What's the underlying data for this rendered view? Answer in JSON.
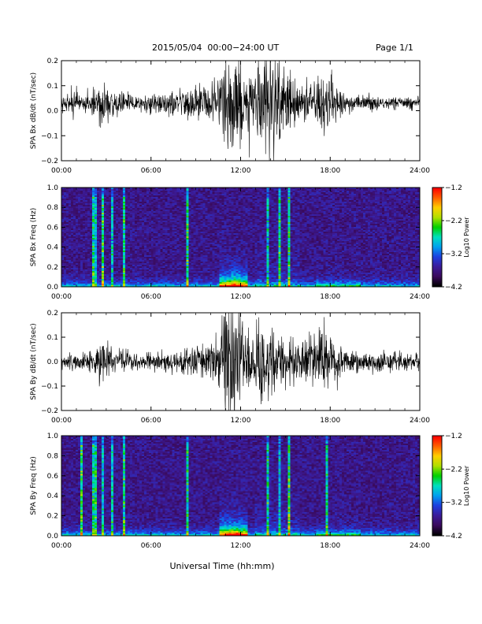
{
  "header": {
    "title": "2015/05/04  00:00−24:00 UT",
    "page": "Page 1/1"
  },
  "footer": {
    "xlabel": "Universal Time (hh:mm)"
  },
  "colors": {
    "trace": "#000000",
    "colormap": [
      "#000000",
      "#3a0a5c",
      "#3b1c9a",
      "#1e3fe0",
      "#00a0f0",
      "#00e0c0",
      "#00d000",
      "#b0e000",
      "#ffd000",
      "#ff6000",
      "#ff0000"
    ]
  },
  "chart_data": [
    {
      "type": "line",
      "ylabel": "SPA Bx dB/dt (nT/sec)",
      "xlim": [
        0,
        24
      ],
      "ylim": [
        -0.2,
        0.2
      ],
      "x_ticks": [
        "00:00",
        "06:00",
        "12:00",
        "18:00",
        "24:00"
      ],
      "y_ticks": [
        "−0.2",
        "−0.1",
        "0.0",
        "0.1",
        "0.2"
      ],
      "series": [
        {
          "values_description_x": [
            0,
            2.0,
            2.7,
            3.0,
            4.0,
            5.5,
            8.5,
            10.5,
            11.0,
            11.7,
            12.0,
            12.3,
            13.0,
            14.0,
            15.0,
            16.0,
            17.0,
            17.8,
            19.0,
            24.0
          ],
          "envelope": [
            0.03,
            0.04,
            0.09,
            0.06,
            0.04,
            0.03,
            0.05,
            0.07,
            0.2,
            0.2,
            0.2,
            0.09,
            0.12,
            0.2,
            0.12,
            0.07,
            0.08,
            0.11,
            0.03,
            0.02
          ],
          "baseline": 0.03
        }
      ]
    },
    {
      "type": "heatmap",
      "ylabel": "SPA Bx Freq (Hz)",
      "colorbar_label": "Log10 Power",
      "colorbar_ticks": [
        "−1.2",
        "−2.2",
        "−3.2",
        "−4.2"
      ],
      "clim": [
        -4.2,
        -1.2
      ],
      "xlim": [
        0,
        24
      ],
      "ylim": [
        0,
        1.0
      ],
      "x_ticks": [
        "00:00",
        "06:00",
        "12:00",
        "18:00",
        "24:00"
      ],
      "y_ticks": [
        "0.0",
        "0.2",
        "0.4",
        "0.6",
        "0.8",
        "1.0"
      ],
      "bright_lines_hours": [
        2.2,
        2.8,
        3.4,
        4.2,
        8.5,
        13.8,
        14.6,
        15.2
      ],
      "peak_activity_hours": [
        10.5,
        12.5
      ]
    },
    {
      "type": "line",
      "ylabel": "SPA By dB/dt (nT/sec)",
      "xlim": [
        0,
        24
      ],
      "ylim": [
        -0.2,
        0.2
      ],
      "x_ticks": [
        "00:00",
        "06:00",
        "12:00",
        "18:00",
        "24:00"
      ],
      "y_ticks": [
        "−0.2",
        "−0.1",
        "0.0",
        "0.1",
        "0.2"
      ],
      "series": [
        {
          "values_description_x": [
            0,
            2.0,
            2.7,
            3.0,
            4.0,
            5.5,
            8.5,
            10.5,
            11.0,
            11.7,
            12.0,
            12.3,
            13.0,
            14.0,
            15.0,
            16.0,
            17.0,
            17.8,
            19.0,
            24.0
          ],
          "envelope": [
            0.03,
            0.04,
            0.09,
            0.06,
            0.04,
            0.03,
            0.05,
            0.08,
            0.2,
            0.2,
            0.2,
            0.1,
            0.12,
            0.14,
            0.09,
            0.07,
            0.1,
            0.12,
            0.04,
            0.03
          ],
          "baseline": 0.0
        }
      ]
    },
    {
      "type": "heatmap",
      "ylabel": "SPA By Freq (Hz)",
      "colorbar_label": "Log10 Power",
      "colorbar_ticks": [
        "−1.2",
        "−2.2",
        "−3.2",
        "−4.2"
      ],
      "clim": [
        -4.2,
        -1.2
      ],
      "xlim": [
        0,
        24
      ],
      "ylim": [
        0,
        1.0
      ],
      "x_ticks": [
        "00:00",
        "06:00",
        "12:00",
        "18:00",
        "24:00"
      ],
      "y_ticks": [
        "0.0",
        "0.2",
        "0.4",
        "0.6",
        "0.8",
        "1.0"
      ],
      "bright_lines_hours": [
        1.3,
        2.2,
        2.8,
        3.4,
        4.2,
        8.5,
        13.8,
        14.6,
        15.2,
        17.8
      ],
      "peak_activity_hours": [
        10.5,
        12.5
      ]
    }
  ]
}
